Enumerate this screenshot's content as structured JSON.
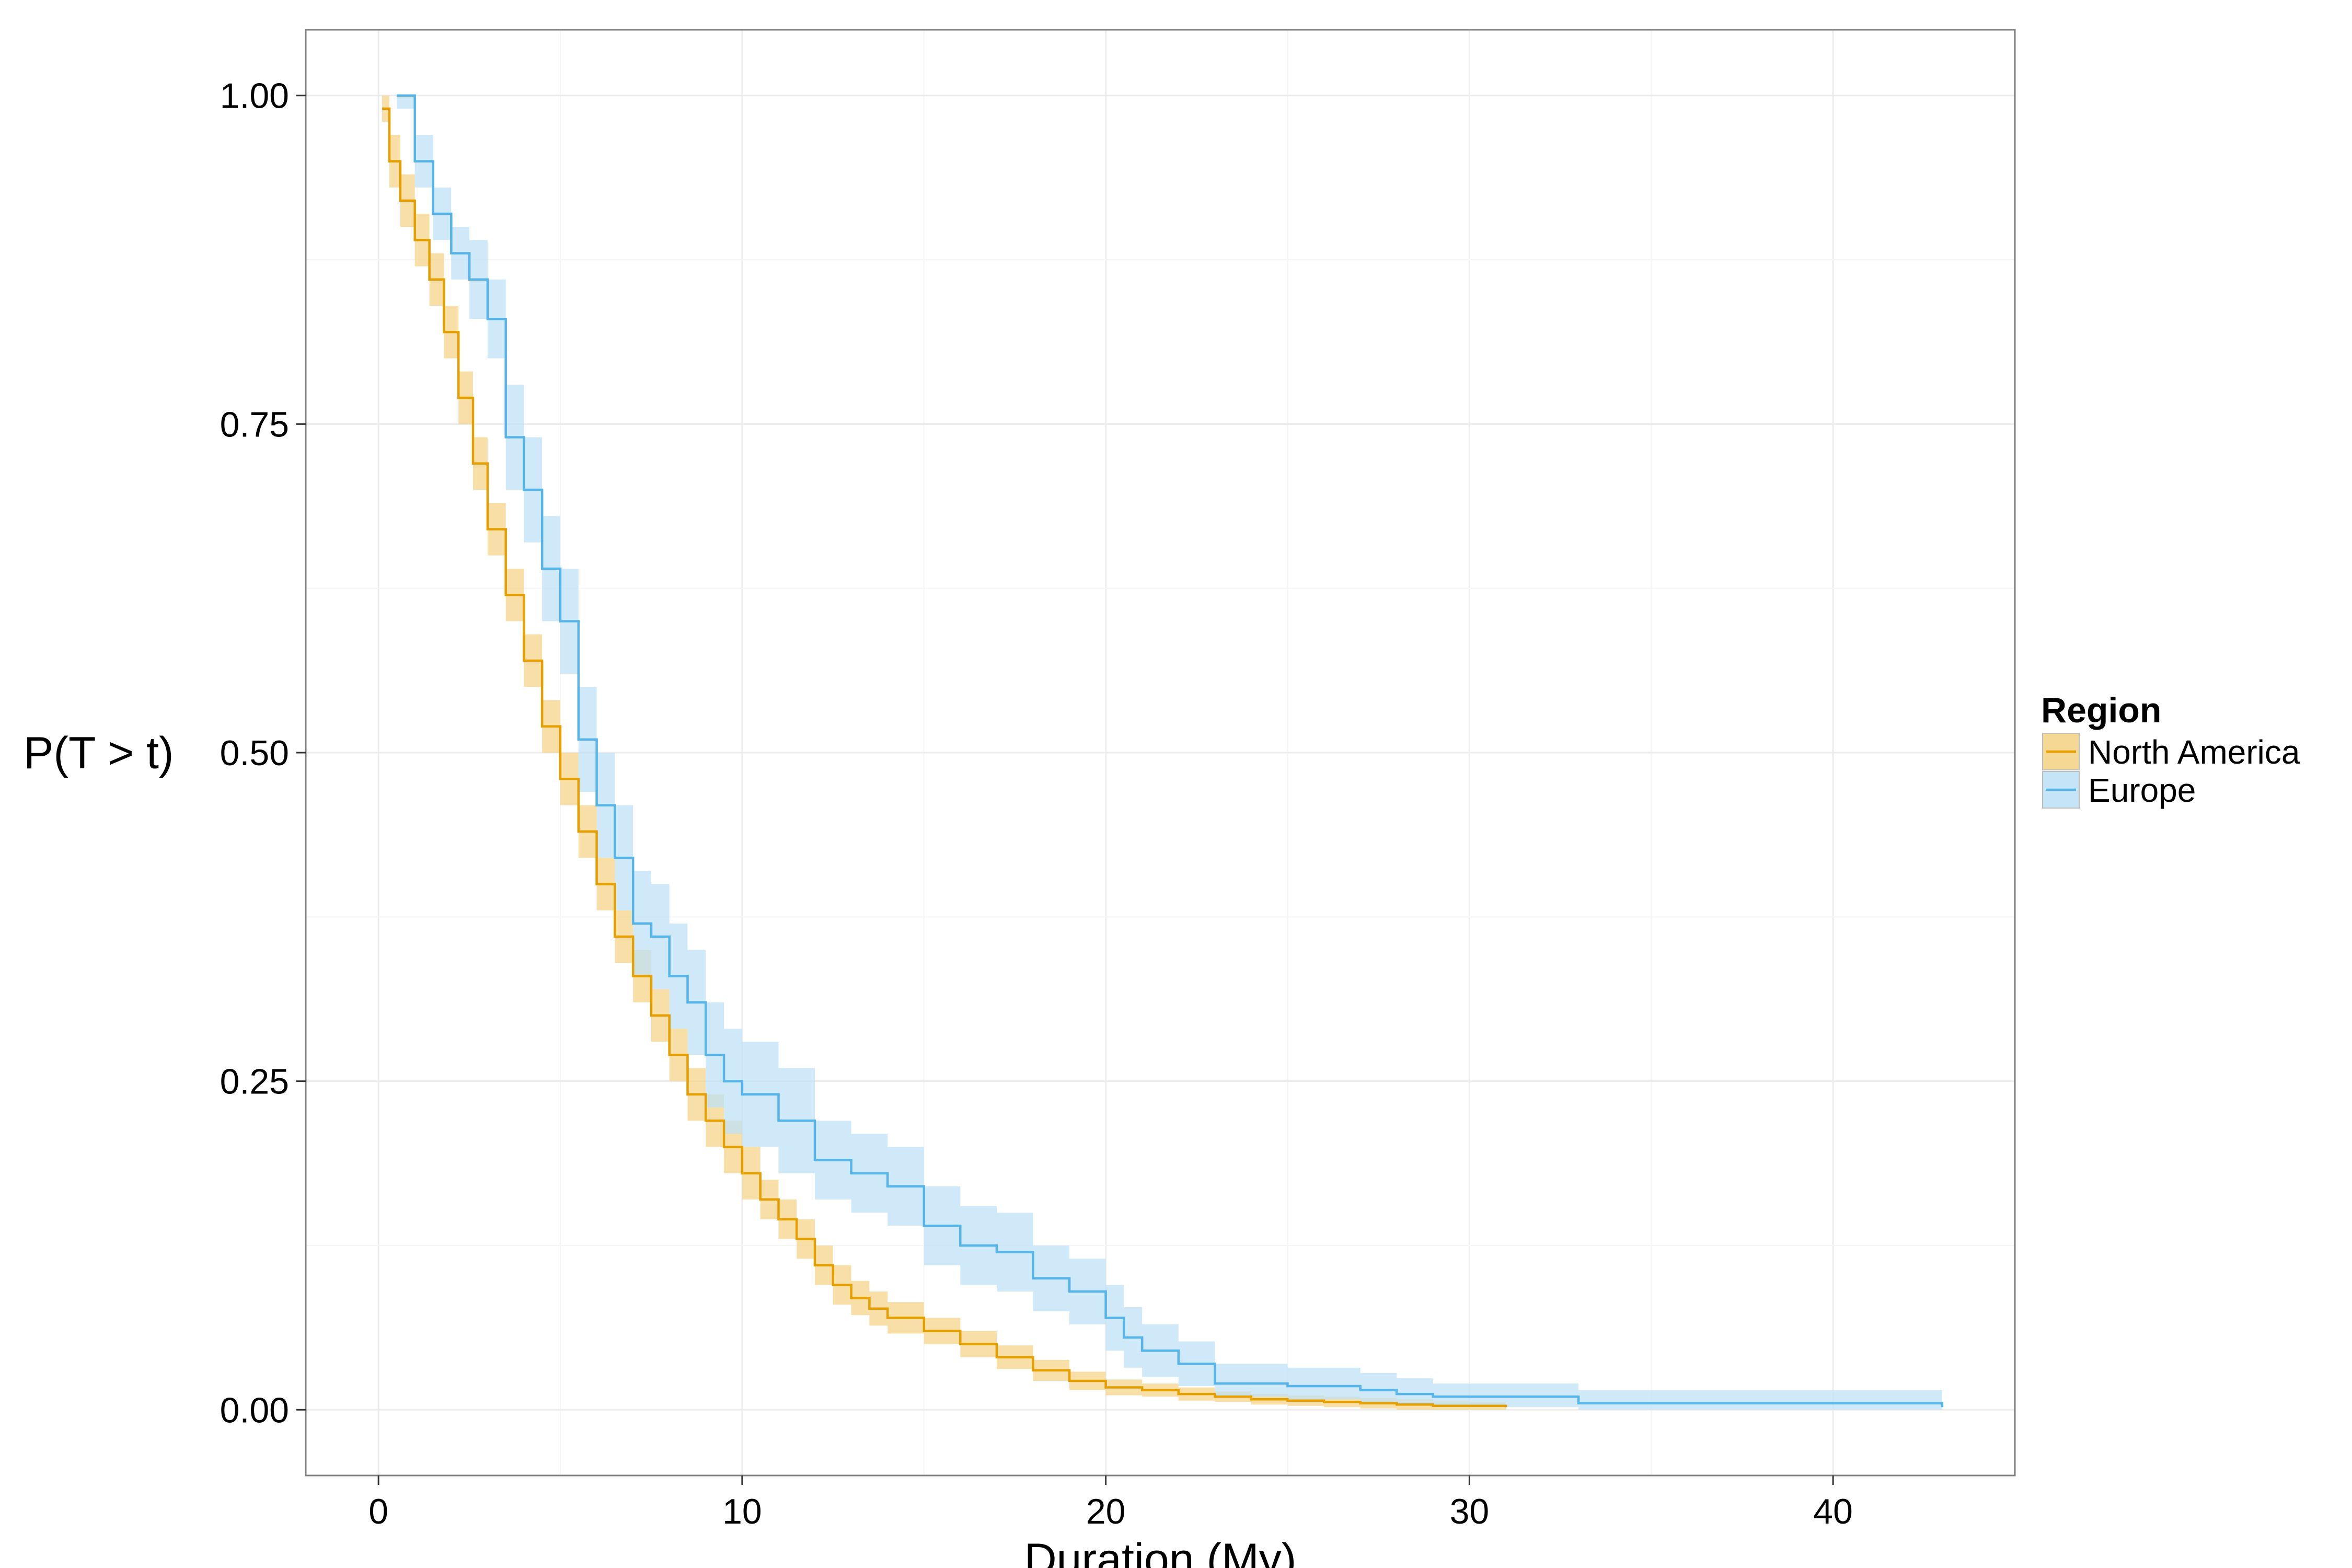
{
  "chart_data": {
    "type": "line",
    "subtype": "survival-step-with-confidence-band",
    "xlabel": "Duration (My)",
    "ylabel": "P(T > t)",
    "xlim": [
      -2,
      45
    ],
    "ylim": [
      -0.05,
      1.05
    ],
    "xticks": [
      0,
      10,
      20,
      30,
      40
    ],
    "yticks": [
      0.0,
      0.25,
      0.5,
      0.75,
      1.0
    ],
    "xtick_labels": [
      "0",
      "10",
      "20",
      "30",
      "40"
    ],
    "ytick_labels": [
      "0.00",
      "0.25",
      "0.50",
      "0.75",
      "1.00"
    ],
    "grid": true,
    "legend": {
      "title": "Region",
      "placement": "right",
      "entries": [
        "North America",
        "Europe"
      ]
    },
    "series": [
      {
        "name": "North America",
        "color": "#E69F00",
        "band_color": "#F5D48A",
        "x": [
          0.1,
          0.3,
          0.6,
          1.0,
          1.4,
          1.8,
          2.2,
          2.6,
          3.0,
          3.5,
          4.0,
          4.5,
          5.0,
          5.5,
          6.0,
          6.5,
          7.0,
          7.5,
          8.0,
          8.5,
          9.0,
          9.5,
          10.0,
          10.5,
          11.0,
          11.5,
          12.0,
          12.5,
          13.0,
          13.5,
          14.0,
          15.0,
          16.0,
          17.0,
          18.0,
          19.0,
          20.0,
          21.0,
          22.0,
          23.0,
          24.0,
          25.0,
          26.0,
          27.0,
          28.0,
          29.0,
          30.0,
          31.0
        ],
        "y": [
          0.99,
          0.95,
          0.92,
          0.89,
          0.86,
          0.82,
          0.77,
          0.72,
          0.67,
          0.62,
          0.57,
          0.52,
          0.48,
          0.44,
          0.4,
          0.36,
          0.33,
          0.3,
          0.27,
          0.24,
          0.22,
          0.2,
          0.18,
          0.16,
          0.145,
          0.13,
          0.11,
          0.095,
          0.085,
          0.077,
          0.07,
          0.06,
          0.05,
          0.04,
          0.03,
          0.022,
          0.017,
          0.015,
          0.012,
          0.01,
          0.008,
          0.007,
          0.006,
          0.005,
          0.004,
          0.003,
          0.003,
          0.002
        ],
        "lower": [
          0.98,
          0.93,
          0.9,
          0.87,
          0.84,
          0.8,
          0.75,
          0.7,
          0.65,
          0.6,
          0.55,
          0.5,
          0.46,
          0.42,
          0.38,
          0.34,
          0.31,
          0.28,
          0.25,
          0.22,
          0.2,
          0.18,
          0.16,
          0.145,
          0.13,
          0.115,
          0.095,
          0.08,
          0.072,
          0.064,
          0.058,
          0.05,
          0.04,
          0.031,
          0.022,
          0.015,
          0.011,
          0.01,
          0.007,
          0.006,
          0.004,
          0.003,
          0.002,
          0.001,
          0.0,
          0.0,
          0.0,
          0.0
        ],
        "upper": [
          1.0,
          0.97,
          0.94,
          0.91,
          0.88,
          0.84,
          0.79,
          0.74,
          0.69,
          0.64,
          0.59,
          0.54,
          0.5,
          0.46,
          0.42,
          0.38,
          0.35,
          0.32,
          0.29,
          0.26,
          0.24,
          0.22,
          0.2,
          0.175,
          0.16,
          0.145,
          0.125,
          0.11,
          0.098,
          0.09,
          0.082,
          0.07,
          0.06,
          0.049,
          0.038,
          0.029,
          0.023,
          0.02,
          0.017,
          0.014,
          0.012,
          0.011,
          0.01,
          0.009,
          0.008,
          0.007,
          0.006,
          0.005
        ]
      },
      {
        "name": "Europe",
        "color": "#56B4E9",
        "band_color": "#BFE1F6",
        "x": [
          0.5,
          1.0,
          1.5,
          2.0,
          2.5,
          3.0,
          3.5,
          4.0,
          4.5,
          5.0,
          5.5,
          6.0,
          6.5,
          7.0,
          7.5,
          8.0,
          8.5,
          9.0,
          9.5,
          10.0,
          11.0,
          12.0,
          13.0,
          14.0,
          15.0,
          16.0,
          17.0,
          18.0,
          19.0,
          20.0,
          20.5,
          21.0,
          22.0,
          23.0,
          25.0,
          27.0,
          28.0,
          29.0,
          31.0,
          33.0,
          35.0,
          38.0,
          41.0,
          43.0
        ],
        "y": [
          1.0,
          0.95,
          0.91,
          0.88,
          0.86,
          0.83,
          0.74,
          0.7,
          0.64,
          0.6,
          0.51,
          0.46,
          0.42,
          0.37,
          0.36,
          0.33,
          0.31,
          0.27,
          0.25,
          0.24,
          0.22,
          0.19,
          0.18,
          0.17,
          0.14,
          0.125,
          0.12,
          0.1,
          0.09,
          0.07,
          0.055,
          0.045,
          0.035,
          0.02,
          0.018,
          0.015,
          0.012,
          0.01,
          0.01,
          0.005,
          0.005,
          0.005,
          0.005,
          0.002
        ],
        "lower": [
          0.99,
          0.93,
          0.89,
          0.86,
          0.83,
          0.8,
          0.7,
          0.66,
          0.6,
          0.56,
          0.47,
          0.42,
          0.38,
          0.33,
          0.32,
          0.29,
          0.27,
          0.23,
          0.21,
          0.2,
          0.18,
          0.16,
          0.15,
          0.14,
          0.11,
          0.095,
          0.09,
          0.075,
          0.065,
          0.045,
          0.032,
          0.025,
          0.018,
          0.01,
          0.008,
          0.006,
          0.004,
          0.002,
          0.002,
          0.0,
          0.0,
          0.0,
          0.0,
          0.0
        ],
        "upper": [
          1.0,
          0.97,
          0.93,
          0.9,
          0.89,
          0.86,
          0.78,
          0.74,
          0.68,
          0.64,
          0.55,
          0.5,
          0.46,
          0.41,
          0.4,
          0.37,
          0.35,
          0.31,
          0.29,
          0.28,
          0.26,
          0.22,
          0.21,
          0.2,
          0.17,
          0.155,
          0.15,
          0.125,
          0.115,
          0.095,
          0.078,
          0.065,
          0.052,
          0.035,
          0.032,
          0.028,
          0.024,
          0.02,
          0.02,
          0.015,
          0.015,
          0.015,
          0.015,
          0.015
        ]
      }
    ]
  }
}
